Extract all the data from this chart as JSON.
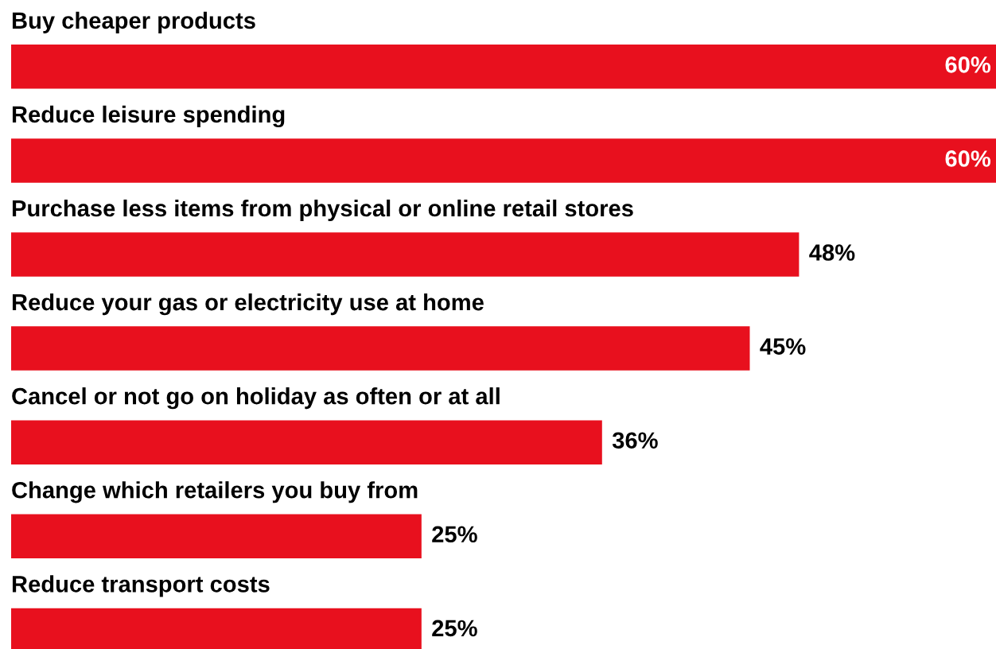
{
  "chart_data": {
    "type": "bar",
    "orientation": "horizontal",
    "categories": [
      "Buy cheaper products",
      "Reduce leisure spending",
      "Purchase less items from physical or online retail stores",
      "Reduce your gas or electricity use at home",
      "Cancel or not go on holiday as often or at all",
      "Change which retailers you buy from",
      "Reduce transport costs"
    ],
    "values": [
      60,
      60,
      48,
      45,
      36,
      25,
      25
    ],
    "value_labels": [
      "60%",
      "60%",
      "48%",
      "45%",
      "36%",
      "25%",
      "25%"
    ],
    "color": "#e8101e"
  }
}
